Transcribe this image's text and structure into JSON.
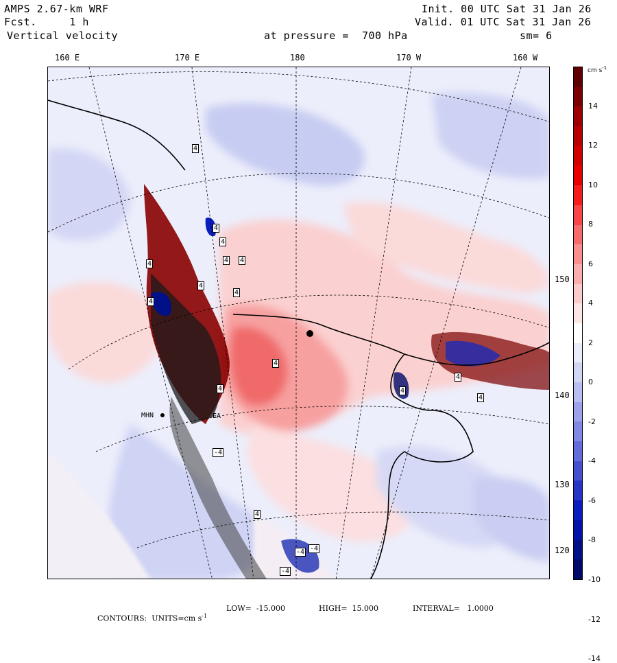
{
  "header": {
    "model": "AMPS 2.67-km WRF",
    "forecast": "Fcst.     1 h",
    "variable": "Vertical velocity",
    "init": "Init. 00 UTC Sat 31 Jan 26",
    "valid": "Valid. 01 UTC Sat 31 Jan 26",
    "pressure": "at pressure =  700 hPa",
    "smoothing": "sm= 6"
  },
  "longitude_labels": [
    "160 E",
    "170 E",
    "180",
    "170 W",
    "160 W"
  ],
  "latitude_labels": [
    "150 W",
    "140 W",
    "130 W",
    "120 W"
  ],
  "colorbar": {
    "units": "cm s",
    "units_exp": "-1",
    "tick_labels": [
      "14",
      "12",
      "10",
      "8",
      "6",
      "4",
      "2",
      "0",
      "-2",
      "-4",
      "-6",
      "-8",
      "-10",
      "-12",
      "-14"
    ],
    "colors": [
      "#5e0000",
      "#7d0000",
      "#9c0000",
      "#b80000",
      "#d10000",
      "#e80000",
      "#f41c1c",
      "#f84545",
      "#f96b6b",
      "#fa8e8e",
      "#fbaeae",
      "#fccccc",
      "#fde6e6",
      "#ffffff",
      "#ebedfb",
      "#d2d6f5",
      "#b8bef0",
      "#9ca3ea",
      "#7f88e2",
      "#626cda",
      "#4450d0",
      "#2535c6",
      "#0a1ebd",
      "#0015a8",
      "#001089",
      "#000a6a"
    ]
  },
  "map_labels": {
    "station_1": "MHN",
    "station_2": "EA"
  },
  "contour_labels": [
    "4",
    "4",
    "4",
    "4",
    "4",
    "4",
    "4",
    "4",
    "4",
    "4",
    "4",
    "4",
    "4",
    "4",
    "4",
    "-4",
    "-4",
    "-4",
    "-4"
  ],
  "footer": {
    "contours": "CONTOURS:  UNITS=cm s",
    "units_exp": "-1",
    "low": "LOW=  -15.000",
    "high": "HIGH=  15.000",
    "interval": "INTERVAL=   1.0000"
  }
}
